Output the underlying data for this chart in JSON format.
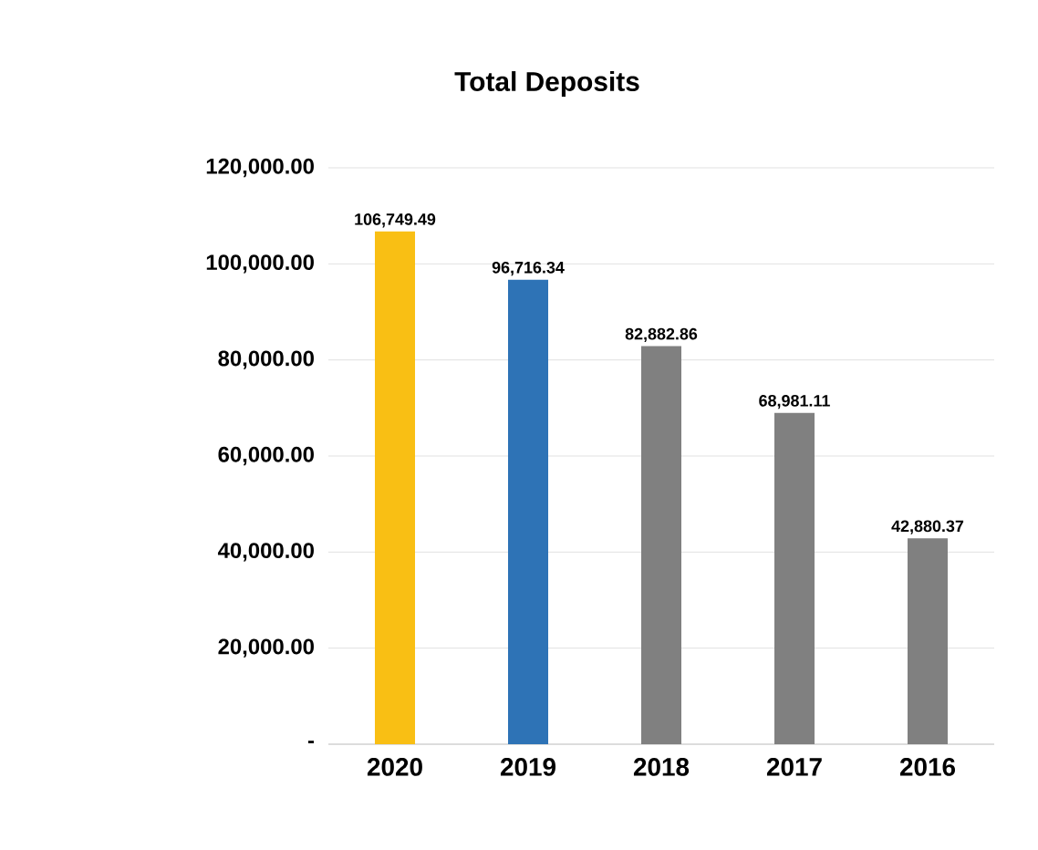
{
  "chart_data": {
    "type": "bar",
    "title": "Total Deposits",
    "categories": [
      "2020",
      "2019",
      "2018",
      "2017",
      "2016"
    ],
    "values": [
      106749.49,
      96716.34,
      82882.86,
      68981.11,
      42880.37
    ],
    "colors": [
      "#f9bf14",
      "#2e73b6",
      "#808080",
      "#808080",
      "#808080"
    ],
    "value_labels": [
      "106,749.49",
      "96,716.34",
      "82,882.86",
      "68,981.11",
      "42,880.37"
    ],
    "ylim": [
      0,
      120000
    ],
    "yticks": [
      {
        "value": 0,
        "label": "-"
      },
      {
        "value": 20000,
        "label": "20,000.00"
      },
      {
        "value": 40000,
        "label": "40,000.00"
      },
      {
        "value": 60000,
        "label": "60,000.00"
      },
      {
        "value": 80000,
        "label": "80,000.00"
      },
      {
        "value": 100000,
        "label": "100,000.00"
      },
      {
        "value": 120000,
        "label": "120,000.00"
      }
    ],
    "grid": "y"
  }
}
